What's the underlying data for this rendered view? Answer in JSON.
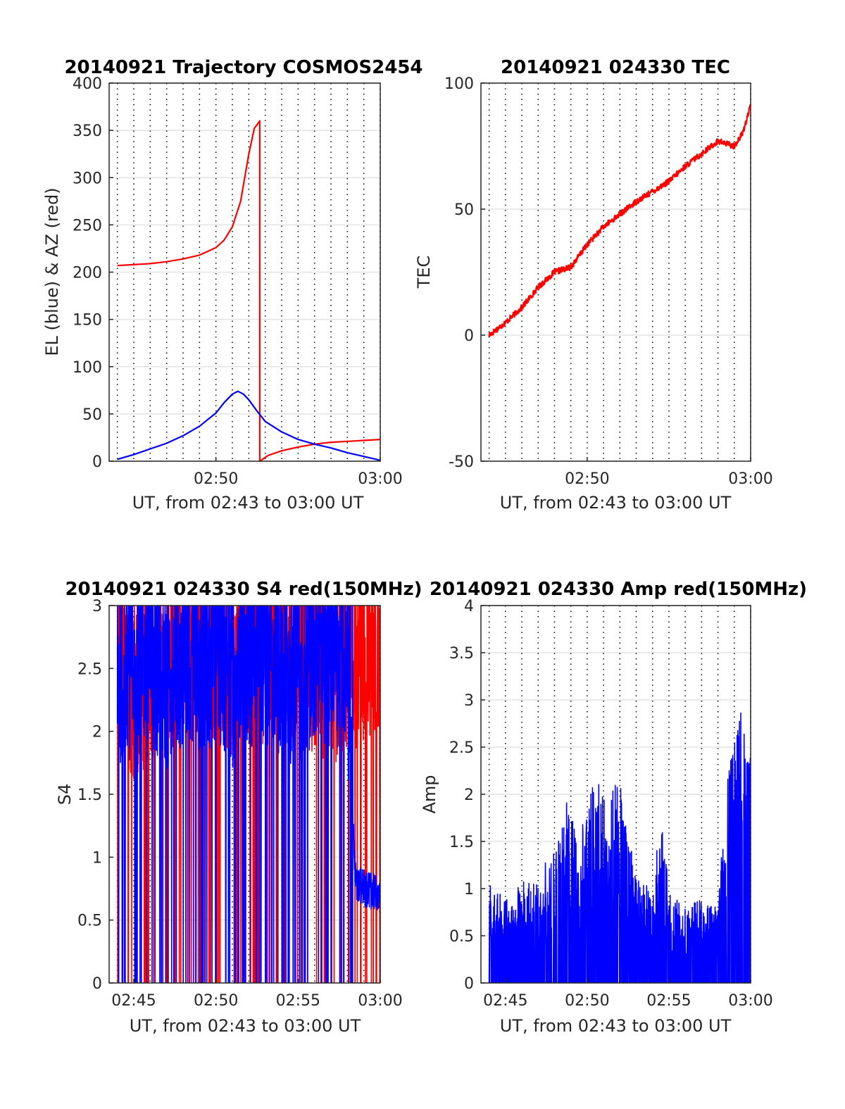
{
  "chart_data": [
    {
      "type": "line",
      "title": "20140921 Trajectory COSMOS2454",
      "xlabel": "UT, from 02:43 to 03:00 UT",
      "ylabel": "EL (blue) & AZ (red)",
      "xlim": [
        "02:43:30",
        "03:00:00"
      ],
      "ylim": [
        0,
        400
      ],
      "xticks": [
        "02:50",
        "03:00"
      ],
      "yticks": [
        "0",
        "50",
        "100",
        "150",
        "200",
        "250",
        "300",
        "350",
        "400"
      ],
      "grid": "minute-dotted-vertical",
      "series": [
        {
          "color": "#ff0000",
          "x": [
            "02:44:00",
            "02:45:00",
            "02:46:00",
            "02:47:00",
            "02:48:00",
            "02:49:00",
            "02:50:00",
            "02:50:30",
            "02:51:00",
            "02:51:30",
            "02:52:00",
            "02:52:20",
            "02:52:40",
            "02:52:40",
            "02:53:10",
            "02:54:00",
            "02:55:00",
            "02:56:00",
            "02:57:00",
            "02:58:00",
            "02:59:00",
            "03:00:00"
          ],
          "values": [
            207,
            208,
            209,
            211,
            214,
            218,
            226,
            234,
            248,
            275,
            325,
            352,
            360,
            0,
            6,
            11,
            15,
            18,
            20,
            21,
            22,
            23
          ]
        },
        {
          "color": "#0000ff",
          "x": [
            "02:44:00",
            "02:45:00",
            "02:46:00",
            "02:47:00",
            "02:48:00",
            "02:49:00",
            "02:50:00",
            "02:50:30",
            "02:51:00",
            "02:51:20",
            "02:51:40",
            "02:52:00",
            "02:52:30",
            "02:53:00",
            "02:54:00",
            "02:55:00",
            "02:56:00",
            "02:57:00",
            "02:58:00",
            "02:59:00",
            "03:00:00"
          ],
          "values": [
            2,
            7,
            13,
            19,
            27,
            37,
            51,
            62,
            71,
            74,
            71,
            65,
            53,
            42,
            31,
            23,
            18,
            14,
            9,
            5,
            1
          ]
        }
      ]
    },
    {
      "type": "line",
      "title": "20140921 024330 TEC",
      "xlabel": "UT, from 02:43 to 03:00 UT",
      "ylabel": "TEC",
      "xlim": [
        "02:43:30",
        "03:00:00"
      ],
      "ylim": [
        -50,
        100
      ],
      "xticks": [
        "02:50",
        "03:00"
      ],
      "yticks": [
        "-50",
        "0",
        "50",
        "100"
      ],
      "grid": "minute-dotted-vertical",
      "series": [
        {
          "color": "#ff0000",
          "x": [
            "02:44:00",
            "02:45:00",
            "02:46:00",
            "02:47:00",
            "02:48:00",
            "02:49:00",
            "02:50:00",
            "02:51:00",
            "02:52:00",
            "02:53:00",
            "02:54:00",
            "02:55:00",
            "02:56:00",
            "02:57:00",
            "02:58:00",
            "02:59:00",
            "02:59:30",
            "03:00:00"
          ],
          "values": [
            0,
            5,
            11,
            19,
            25,
            27,
            36,
            43,
            48,
            53,
            57,
            61,
            67,
            72,
            77,
            75,
            80,
            91
          ]
        }
      ]
    },
    {
      "type": "line",
      "title": "20140921 024330 S4 red(150MHz)",
      "xlabel": "UT, from 02:43 to 03:00 UT",
      "ylabel": "S4",
      "xlim": [
        "02:43:30",
        "03:00:00"
      ],
      "ylim": [
        0,
        3
      ],
      "xticks": [
        "02:45",
        "02:50",
        "02:55",
        "03:00"
      ],
      "yticks": [
        "0",
        "0.5",
        "1",
        "1.5",
        "2",
        "2.5",
        "3"
      ],
      "grid": "minute-dotted-vertical",
      "series": [
        {
          "color": "#ff0000",
          "description_level": [
            2.5,
            2.3,
            2.4,
            2.5,
            2.6,
            2.7,
            2.6,
            2.5,
            2.6,
            2.6,
            2.7,
            2.6,
            2.5,
            2.4,
            2.5,
            2.6,
            2.7
          ],
          "x": [
            "02:44",
            "02:45",
            "02:46",
            "02:47",
            "02:48",
            "02:49",
            "02:50",
            "02:51",
            "02:52",
            "02:53",
            "02:54",
            "02:55",
            "02:56",
            "02:57",
            "02:58",
            "02:59",
            "03:00"
          ],
          "values": [
            2.5,
            2.3,
            2.4,
            2.5,
            2.6,
            2.7,
            2.6,
            2.5,
            2.6,
            2.6,
            2.7,
            2.6,
            2.5,
            2.4,
            2.5,
            2.6,
            2.7
          ]
        },
        {
          "color": "#0000ff",
          "x": [
            "02:44",
            "02:45",
            "02:46",
            "02:47",
            "02:48",
            "02:49",
            "02:50",
            "02:51",
            "02:52",
            "02:53",
            "02:54",
            "02:55",
            "02:56",
            "02:57",
            "02:58",
            "02:58:30",
            "02:59",
            "03:00"
          ],
          "values": [
            2.4,
            2.4,
            2.5,
            2.4,
            2.6,
            2.5,
            2.6,
            2.4,
            2.5,
            2.6,
            2.5,
            2.4,
            2.6,
            2.6,
            2.5,
            0.8,
            0.75,
            0.7
          ]
        }
      ]
    },
    {
      "type": "line",
      "title": "20140921 024330 Amp red(150MHz)",
      "xlabel": "UT, from 02:43 to 03:00 UT",
      "ylabel": "Amp",
      "xlim": [
        "02:43:30",
        "03:00:00"
      ],
      "ylim": [
        0,
        4
      ],
      "xticks": [
        "02:45",
        "02:50",
        "02:55",
        "03:00"
      ],
      "yticks": [
        "0",
        "0.5",
        "1",
        "1.5",
        "2",
        "2.5",
        "3",
        "3.5",
        "4"
      ],
      "grid": "minute-dotted-vertical",
      "series": [
        {
          "color": "#0000ff",
          "x": [
            "02:44",
            "02:45",
            "02:46",
            "02:47",
            "02:48",
            "02:49",
            "02:49:30",
            "02:50",
            "02:51",
            "02:52",
            "02:53",
            "02:54",
            "02:54:30",
            "02:55",
            "02:56",
            "02:57",
            "02:58",
            "02:58:30",
            "02:59",
            "02:59:30",
            "03:00"
          ],
          "values": [
            1.05,
            0.9,
            1.1,
            1.2,
            1.4,
            2.1,
            1.2,
            2.38,
            2.0,
            2.15,
            1.1,
            1.0,
            2.0,
            1.0,
            0.8,
            0.9,
            0.8,
            2.3,
            2.6,
            3.1,
            2.5
          ]
        }
      ]
    }
  ]
}
